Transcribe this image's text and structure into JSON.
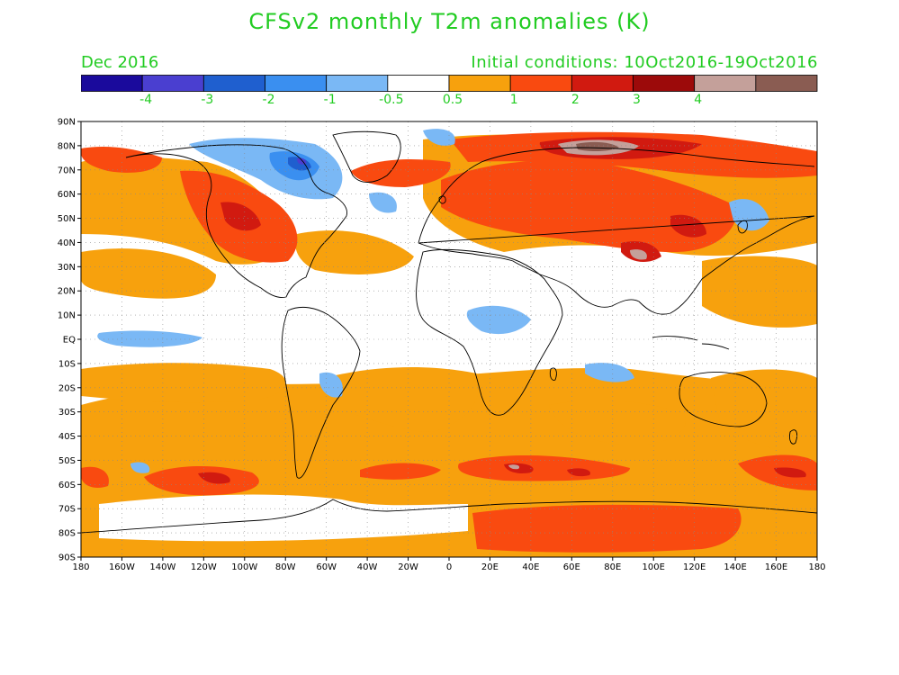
{
  "title": "CFSv2 monthly T2m anomalies (K)",
  "valid_month": "Dec 2016",
  "initial_conditions": "Initial conditions: 10Oct2016-19Oct2016",
  "colorbar": {
    "colors": [
      "#1a0a9c",
      "#4a3fd0",
      "#1f5fcf",
      "#3a8ff0",
      "#7ab8f5",
      "#ffffff",
      "#f7a10d",
      "#f94a10",
      "#d11a10",
      "#9c0a0a",
      "#c4a09a",
      "#8a5c52"
    ],
    "labels": [
      "-4",
      "-3",
      "-2",
      "-1",
      "-0.5",
      "0.5",
      "1",
      "2",
      "3",
      "4"
    ]
  },
  "map": {
    "lon_range": [
      -180,
      180
    ],
    "lat_range": [
      -90,
      90
    ],
    "lon_ticks": [
      "180",
      "160W",
      "140W",
      "120W",
      "100W",
      "80W",
      "60W",
      "40W",
      "20W",
      "0",
      "20E",
      "40E",
      "60E",
      "80E",
      "100E",
      "120E",
      "140E",
      "160E",
      "180"
    ],
    "lat_ticks": [
      "90N",
      "80N",
      "70N",
      "60N",
      "50N",
      "40N",
      "30N",
      "20N",
      "10N",
      "EQ",
      "10S",
      "20S",
      "30S",
      "40S",
      "50S",
      "60S",
      "70S",
      "80S",
      "90S"
    ]
  }
}
